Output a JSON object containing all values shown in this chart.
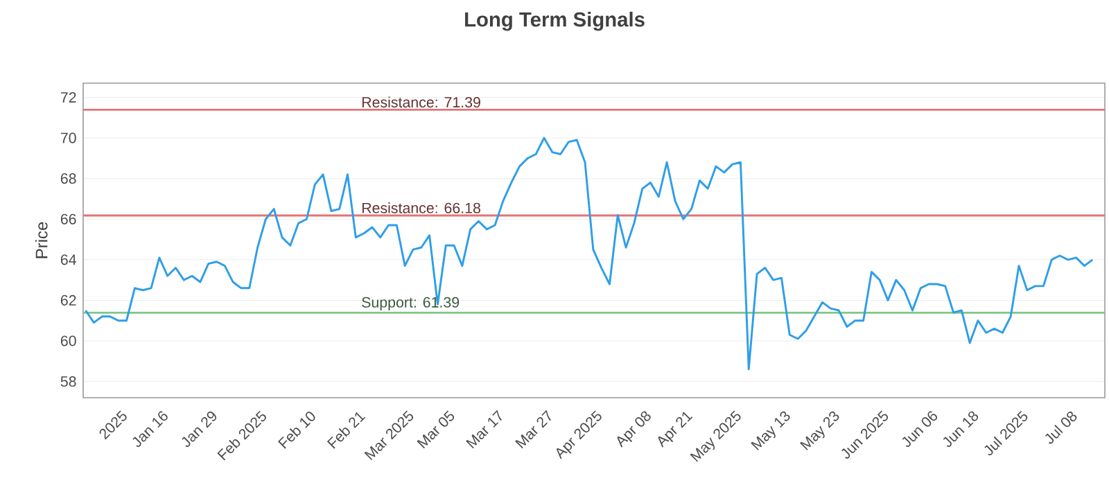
{
  "chart_data": {
    "type": "line",
    "title": "Long Term Signals",
    "ylabel": "Price",
    "categories": [
      null,
      null,
      null,
      null,
      "2025",
      null,
      null,
      null,
      null,
      "Jan 16",
      null,
      null,
      null,
      null,
      null,
      "Jan 29",
      null,
      null,
      null,
      null,
      null,
      "Feb 2025",
      null,
      null,
      null,
      null,
      null,
      "Feb 10",
      null,
      null,
      null,
      null,
      null,
      "Feb 21",
      null,
      null,
      null,
      null,
      null,
      "Mar 2025",
      null,
      null,
      null,
      null,
      "Mar 05",
      null,
      null,
      null,
      null,
      null,
      "Mar 17",
      null,
      null,
      null,
      null,
      null,
      "Mar 27",
      null,
      null,
      null,
      null,
      null,
      "Apr 2025",
      null,
      null,
      null,
      null,
      null,
      "Apr 08",
      null,
      null,
      null,
      null,
      "Apr 21",
      null,
      null,
      null,
      null,
      null,
      "May 2025",
      null,
      null,
      null,
      null,
      null,
      "May 13",
      null,
      null,
      null,
      null,
      null,
      "May 23",
      null,
      null,
      null,
      null,
      null,
      "Jun 2025",
      null,
      null,
      null,
      null,
      null,
      "Jun 06",
      null,
      null,
      null,
      null,
      "Jun 18",
      null,
      null,
      null,
      null,
      null,
      "Jul 2025",
      null,
      null,
      null,
      null,
      null,
      "Jul 08",
      null,
      null,
      null
    ],
    "series": [
      {
        "color": "#2f9ee8",
        "values": [
          61.5,
          60.9,
          61.2,
          61.2,
          61.0,
          61.0,
          62.6,
          62.5,
          62.6,
          64.1,
          63.2,
          63.6,
          63.0,
          63.2,
          62.9,
          63.8,
          63.9,
          63.7,
          62.9,
          62.6,
          62.6,
          64.6,
          66.0,
          66.5,
          65.1,
          64.7,
          65.8,
          66.0,
          67.7,
          68.2,
          66.4,
          66.5,
          68.2,
          65.1,
          65.3,
          65.6,
          65.1,
          65.7,
          65.7,
          63.7,
          64.5,
          64.6,
          65.2,
          61.8,
          64.7,
          64.7,
          63.7,
          65.5,
          65.9,
          65.5,
          65.7,
          66.9,
          67.8,
          68.6,
          69.0,
          69.2,
          70.0,
          69.3,
          69.2,
          69.8,
          69.9,
          68.8,
          64.5,
          63.6,
          62.8,
          66.2,
          64.6,
          65.8,
          67.5,
          67.8,
          67.1,
          68.8,
          66.9,
          66.0,
          66.5,
          67.9,
          67.5,
          68.6,
          68.3,
          68.7,
          68.8,
          58.6,
          63.3,
          63.6,
          63.0,
          63.1,
          60.3,
          60.1,
          60.5,
          61.2,
          61.9,
          61.6,
          61.5,
          60.7,
          61.0,
          61.0,
          63.4,
          63.0,
          62.0,
          63.0,
          62.5,
          61.5,
          62.6,
          62.8,
          62.8,
          62.7,
          61.4,
          61.5,
          59.9,
          61.0,
          60.4,
          60.6,
          60.4,
          61.2,
          63.7,
          62.5,
          62.7,
          62.7,
          64.0,
          64.2,
          64.0,
          64.1,
          63.7,
          64.0
        ]
      }
    ],
    "ylim": [
      57.2,
      72.7
    ],
    "yticks": [
      58,
      60,
      62,
      64,
      66,
      68,
      70,
      72
    ],
    "grid": "y",
    "marker": "none",
    "line_style": "solid",
    "ref_lines": [
      {
        "axis": "y",
        "value": 71.39,
        "label": "Resistance: 71.39",
        "color": "#e57373"
      },
      {
        "axis": "y",
        "value": 66.18,
        "label": "Resistance: 66.18",
        "color": "#e57373"
      },
      {
        "axis": "y",
        "value": 61.39,
        "label": "Support: 61.39",
        "color": "#81c784"
      }
    ]
  }
}
